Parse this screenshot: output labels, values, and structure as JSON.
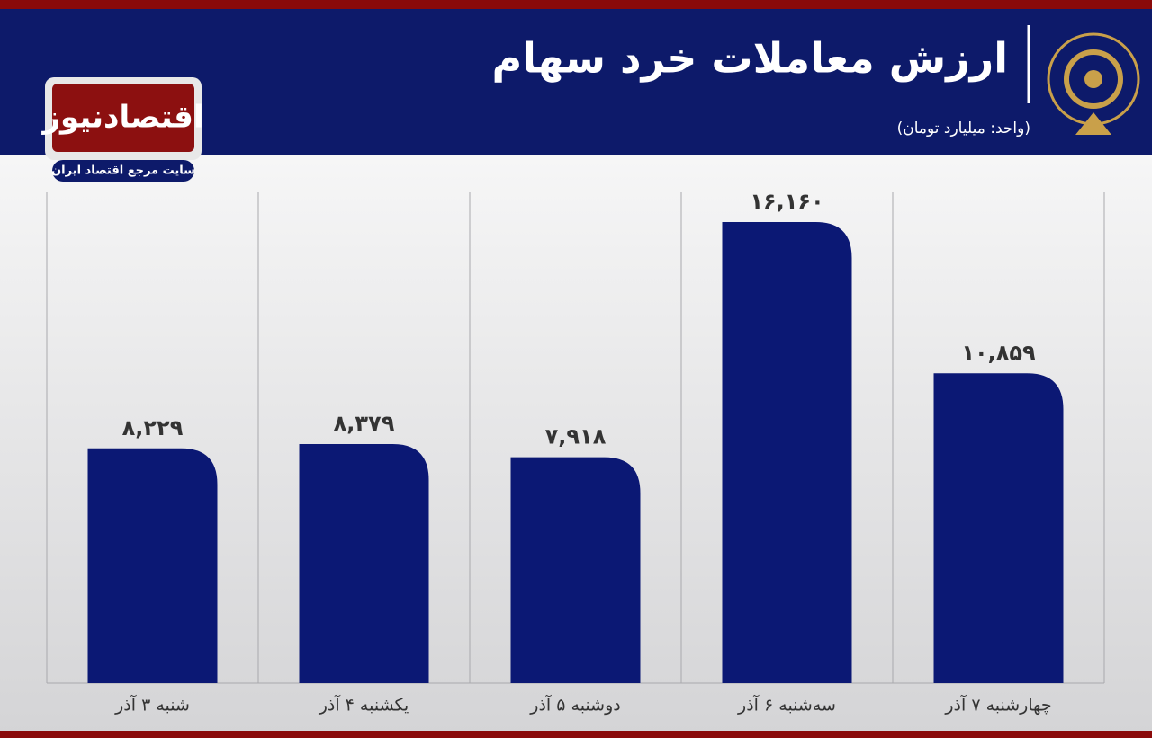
{
  "logo": {
    "name": "اقتصادنیوز",
    "tagline": "سایت مرجع اقتصاد ایران"
  },
  "chart_data": {
    "type": "bar",
    "title": "ارزش معاملات خرد سهام",
    "subtitle": "(واحد: میلیارد تومان)",
    "categories": [
      "شنبه ۳ آذر",
      "یکشنبه ۴ آذر",
      "دوشنبه ۵ آذر",
      "سه‌شنبه ۶ آذر",
      "چهارشنبه ۷ آذر"
    ],
    "values": [
      8229,
      8379,
      7918,
      16160,
      10859
    ],
    "value_labels": [
      "۸,۲۲۹",
      "۸,۳۷۹",
      "۷,۹۱۸",
      "۱۶,۱۶۰",
      "۱۰,۸۵۹"
    ],
    "color": "#0b1874"
  }
}
